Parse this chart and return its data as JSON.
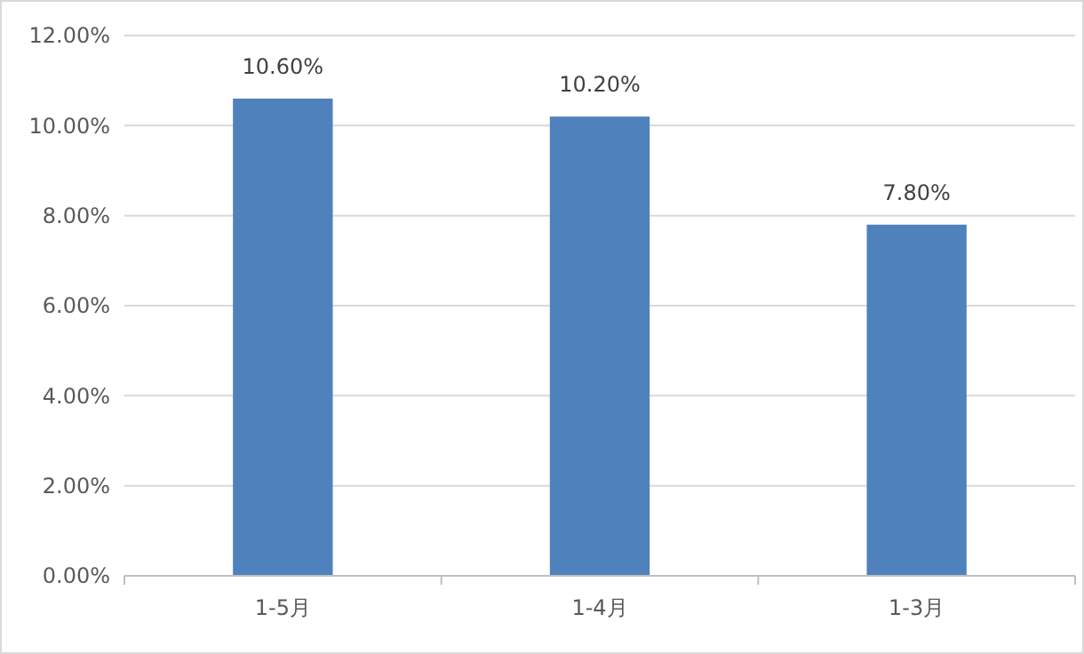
{
  "chart_data": {
    "type": "bar",
    "categories": [
      "1-5月",
      "1-4月",
      "1-3月"
    ],
    "values": [
      10.6,
      10.2,
      7.8
    ],
    "color": "#4f81bd",
    "value_labels": [
      "10.60%",
      "10.20%",
      "7.80%"
    ],
    "ylim": [
      0,
      12
    ],
    "yticks": [
      {
        "value": 0,
        "label": "0.00%"
      },
      {
        "value": 2,
        "label": "2.00%"
      },
      {
        "value": 4,
        "label": "4.00%"
      },
      {
        "value": 6,
        "label": "6.00%"
      },
      {
        "value": 8,
        "label": "8.00%"
      },
      {
        "value": 10,
        "label": "10.00%"
      },
      {
        "value": 12,
        "label": "12.00%"
      }
    ],
    "grid": "y"
  }
}
